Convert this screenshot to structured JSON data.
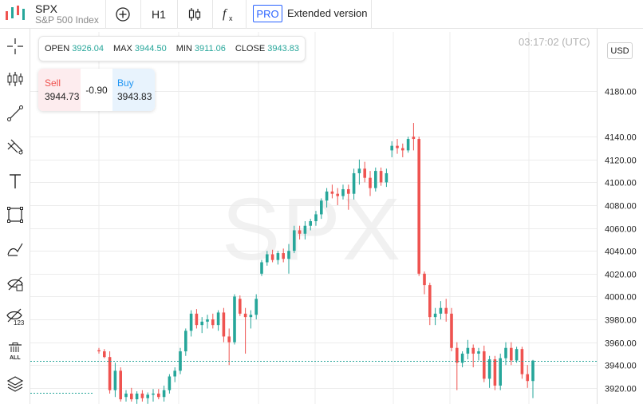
{
  "symbol": {
    "ticker": "SPX",
    "name": "S&P 500 Index"
  },
  "toolbar": {
    "timeframe": "H1",
    "indicator_icon": "fx-icon",
    "pro_label": "PRO",
    "extended_label": "Extended version"
  },
  "left_tools": [
    "crosshair-icon",
    "candles-icon",
    "trend-line-icon",
    "fib-icon",
    "text-icon",
    "rectangle-icon",
    "brush-icon",
    "hide-drawings-icon",
    "hide-labels-icon",
    "delete-all-icon",
    "layers-icon"
  ],
  "chart": {
    "time": "03:17:02 (UTC)",
    "currency": "USD",
    "watermark": "SPX",
    "ohlc": {
      "open_label": "OPEN",
      "open": "3926.04",
      "max_label": "MAX",
      "max": "3944.50",
      "min_label": "MIN",
      "min": "3911.06",
      "close_label": "CLOSE",
      "close": "3943.83"
    },
    "trade": {
      "sell_label": "Sell",
      "sell": "3944.73",
      "spread": "-0.90",
      "buy_label": "Buy",
      "buy": "3943.83"
    }
  },
  "colors": {
    "up": "#26a69a",
    "down": "#ef5350",
    "accent": "#2962ff",
    "price_line": "#26a69a"
  },
  "chart_data": {
    "type": "candlestick",
    "y_ticks": [
      "3920.00",
      "3940.00",
      "3960.00",
      "3980.00",
      "4000.00",
      "4020.00",
      "4040.00",
      "4060.00",
      "4080.00",
      "4100.00",
      "4120.00",
      "4140.00",
      "4180.00"
    ],
    "ylim": [
      3908,
      4215
    ],
    "current_price": 3943.83,
    "candles": [
      [
        3953,
        3955,
        3950,
        3952
      ],
      [
        3952,
        3954,
        3946,
        3947
      ],
      [
        3947,
        3952,
        3915,
        3918
      ],
      [
        3918,
        3942,
        3912,
        3935
      ],
      [
        3935,
        3938,
        3908,
        3910
      ],
      [
        3912,
        3918,
        3908,
        3915
      ],
      [
        3915,
        3920,
        3908,
        3910
      ],
      [
        3910,
        3917,
        3906,
        3915
      ],
      [
        3915,
        3918,
        3908,
        3911
      ],
      [
        3911,
        3916,
        3906,
        3914
      ],
      [
        3914,
        3919,
        3908,
        3915
      ],
      [
        3915,
        3919,
        3910,
        3912
      ],
      [
        3912,
        3922,
        3908,
        3918
      ],
      [
        3918,
        3932,
        3915,
        3930
      ],
      [
        3930,
        3938,
        3925,
        3935
      ],
      [
        3935,
        3955,
        3932,
        3952
      ],
      [
        3952,
        3972,
        3948,
        3970
      ],
      [
        3970,
        3988,
        3965,
        3985
      ],
      [
        3985,
        3989,
        3972,
        3975
      ],
      [
        3975,
        3982,
        3968,
        3978
      ],
      [
        3978,
        3984,
        3972,
        3980
      ],
      [
        3980,
        3985,
        3972,
        3975
      ],
      [
        3975,
        3988,
        3970,
        3986
      ],
      [
        3986,
        3990,
        3960,
        3965
      ],
      [
        3965,
        3972,
        3940,
        3960
      ],
      [
        3960,
        4002,
        3958,
        4000
      ],
      [
        3998,
        4001,
        3983,
        3985
      ],
      [
        3985,
        3990,
        3950,
        3982
      ],
      [
        3982,
        3988,
        3972,
        3984
      ],
      [
        3984,
        4002,
        3980,
        3998
      ],
      [
        4020,
        4032,
        4018,
        4030
      ],
      [
        4030,
        4040,
        4027,
        4037
      ],
      [
        4037,
        4041,
        4030,
        4032
      ],
      [
        4032,
        4040,
        4028,
        4038
      ],
      [
        4038,
        4042,
        4030,
        4033
      ],
      [
        4033,
        4046,
        4020,
        4040
      ],
      [
        4040,
        4062,
        4038,
        4058
      ],
      [
        4058,
        4062,
        4050,
        4055
      ],
      [
        4055,
        4066,
        4050,
        4062
      ],
      [
        4062,
        4068,
        4058,
        4066
      ],
      [
        4066,
        4075,
        4062,
        4072
      ],
      [
        4072,
        4086,
        4068,
        4084
      ],
      [
        4084,
        4095,
        4078,
        4092
      ],
      [
        4092,
        4098,
        4086,
        4090
      ],
      [
        4090,
        4095,
        4080,
        4088
      ],
      [
        4088,
        4098,
        4085,
        4094
      ],
      [
        4094,
        4098,
        4076,
        4090
      ],
      [
        4090,
        4112,
        4085,
        4108
      ],
      [
        4108,
        4120,
        4098,
        4112
      ],
      [
        4112,
        4118,
        4100,
        4104
      ],
      [
        4104,
        4110,
        4088,
        4095
      ],
      [
        4095,
        4113,
        4092,
        4110
      ],
      [
        4110,
        4113,
        4097,
        4100
      ],
      [
        4100,
        4112,
        4096,
        4108
      ],
      [
        4128,
        4136,
        4122,
        4132
      ],
      [
        4132,
        4138,
        4125,
        4130
      ],
      [
        4130,
        4134,
        4122,
        4128
      ],
      [
        4128,
        4140,
        4126,
        4138
      ],
      [
        4140,
        4152,
        4128,
        4138
      ],
      [
        4138,
        4140,
        4018,
        4020
      ],
      [
        4020,
        4022,
        4002,
        4010
      ],
      [
        4010,
        4012,
        3975,
        3982
      ],
      [
        3982,
        3990,
        3975,
        3985
      ],
      [
        3985,
        3996,
        3980,
        3990
      ],
      [
        3990,
        3998,
        3978,
        3985
      ],
      [
        3985,
        3990,
        3952,
        3955
      ],
      [
        3955,
        3960,
        3918,
        3942
      ],
      [
        3942,
        3952,
        3938,
        3950
      ],
      [
        3950,
        3962,
        3945,
        3955
      ],
      [
        3955,
        3958,
        3938,
        3950
      ],
      [
        3950,
        3955,
        3944,
        3952
      ],
      [
        3952,
        3957,
        3925,
        3928
      ],
      [
        3928,
        3948,
        3920,
        3945
      ],
      [
        3945,
        3948,
        3918,
        3922
      ],
      [
        3922,
        3950,
        3918,
        3946
      ],
      [
        3946,
        3960,
        3940,
        3955
      ],
      [
        3955,
        3960,
        3940,
        3944
      ],
      [
        3944,
        3956,
        3942,
        3954
      ],
      [
        3954,
        3956,
        3928,
        3932
      ],
      [
        3932,
        3940,
        3920,
        3926
      ],
      [
        3926,
        3944.5,
        3911.06,
        3943.83
      ]
    ]
  }
}
